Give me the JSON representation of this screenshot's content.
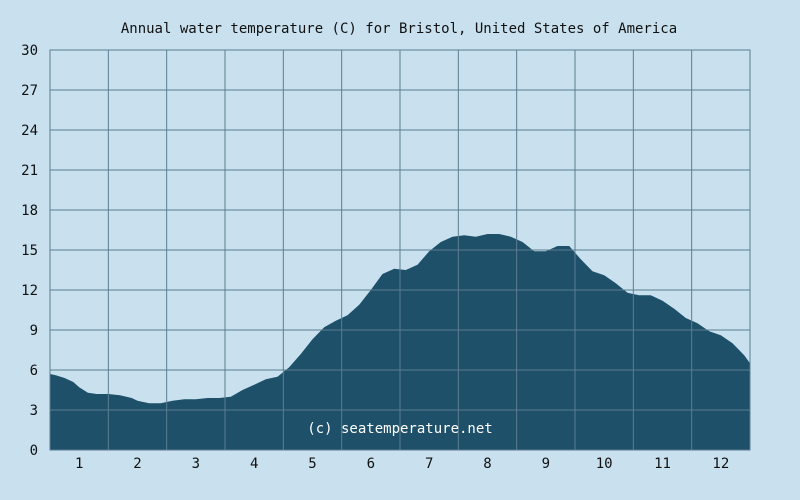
{
  "chart_data": {
    "type": "area",
    "title": "Annual water temperature (C) for Bristol, United States of America",
    "xlabel": "",
    "ylabel": "",
    "x_ticks": [
      "1",
      "2",
      "3",
      "4",
      "5",
      "6",
      "7",
      "8",
      "9",
      "10",
      "11",
      "12"
    ],
    "y_ticks": [
      "0",
      "3",
      "6",
      "9",
      "12",
      "15",
      "18",
      "21",
      "24",
      "27",
      "30"
    ],
    "xlim": [
      0.5,
      12.5
    ],
    "ylim": [
      0,
      30
    ],
    "grid": true,
    "watermark": "(c) seatemperature.net",
    "colors": {
      "background": "#c9e1ee",
      "plot_background": "#c9e1ee",
      "fill": "#1e5069",
      "grid": "#5c7d92"
    },
    "series": [
      {
        "x": [
          0.5,
          0.6,
          0.75,
          0.9,
          1.0,
          1.15,
          1.3,
          1.5,
          1.7,
          1.9,
          2.0,
          2.2,
          2.4,
          2.6,
          2.8,
          3.0,
          3.2,
          3.4,
          3.6,
          3.8,
          4.0,
          4.2,
          4.4,
          4.6,
          4.8,
          5.0,
          5.2,
          5.4,
          5.6,
          5.8,
          6.0,
          6.2,
          6.4,
          6.6,
          6.8,
          7.0,
          7.2,
          7.4,
          7.6,
          7.8,
          8.0,
          8.2,
          8.4,
          8.6,
          8.8,
          9.0,
          9.2,
          9.4,
          9.6,
          9.8,
          10.0,
          10.2,
          10.4,
          10.6,
          10.8,
          11.0,
          11.2,
          11.4,
          11.6,
          11.8,
          12.0,
          12.2,
          12.4,
          12.5
        ],
        "values": [
          5.7,
          5.6,
          5.4,
          5.1,
          4.7,
          4.3,
          4.2,
          4.2,
          4.1,
          3.9,
          3.7,
          3.5,
          3.5,
          3.7,
          3.8,
          3.8,
          3.9,
          3.9,
          4.0,
          4.5,
          4.9,
          5.3,
          5.5,
          6.2,
          7.2,
          8.3,
          9.2,
          9.7,
          10.1,
          10.9,
          12.0,
          13.2,
          13.6,
          13.5,
          13.9,
          14.9,
          15.6,
          16.0,
          16.1,
          16.0,
          16.2,
          16.2,
          16.0,
          15.6,
          14.9,
          14.9,
          15.3,
          15.3,
          14.3,
          13.4,
          13.1,
          12.5,
          11.8,
          11.6,
          11.6,
          11.2,
          10.6,
          9.9,
          9.5,
          8.9,
          8.6,
          8.0,
          7.1,
          6.5
        ]
      }
    ]
  }
}
